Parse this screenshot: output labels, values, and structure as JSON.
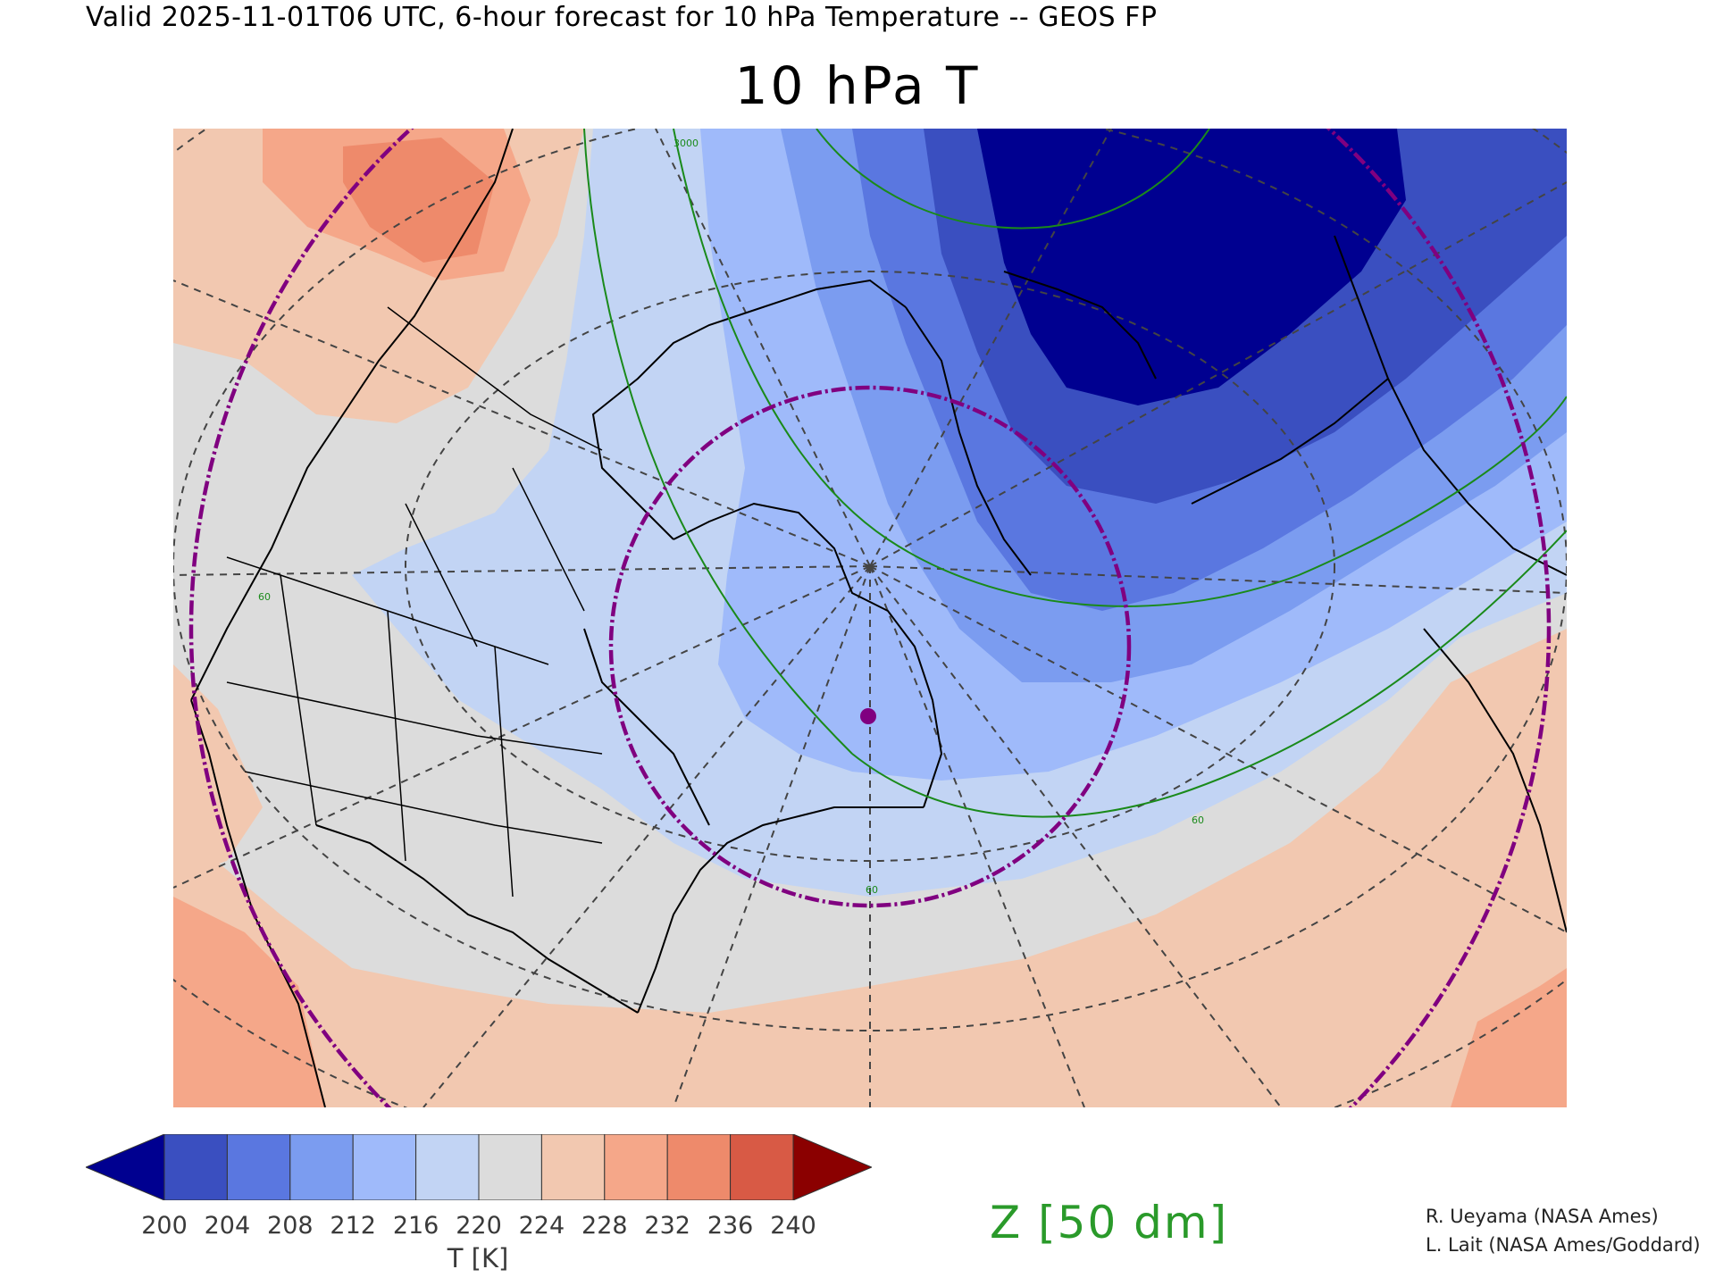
{
  "header": {
    "valid_text": "Valid 2025-11-01T06 UTC, 6-hour forecast for 10 hPa Temperature -- GEOS FP",
    "title": "10 hPa T"
  },
  "map": {
    "projection": "polar stereographic (north)",
    "background_color": "#dcdcdc",
    "coastline_color": "#000000",
    "graticule_color": "#444444",
    "contour_color": "#1a8a1a",
    "vortex_edge_color": "#800080",
    "contour_labels": [
      "3000",
      "60",
      "60",
      "60"
    ],
    "marker": "center-point"
  },
  "colorbar": {
    "ticks": [
      "200",
      "204",
      "208",
      "212",
      "216",
      "220",
      "224",
      "228",
      "232",
      "236",
      "240"
    ],
    "label": "T [K]",
    "under_color": "#000090",
    "over_color": "#8b0000",
    "bin_colors": [
      "#3a4fc0",
      "#5a77e0",
      "#7b9cf0",
      "#9fbafa",
      "#c2d4f4",
      "#dcdcdc",
      "#f2c8b0",
      "#f5a789",
      "#ee8a6b",
      "#d85a45"
    ]
  },
  "contour_legend": {
    "label": "Z [50 dm]",
    "color": "#2a9a2a"
  },
  "credits": {
    "line1": "R. Ueyama (NASA Ames)",
    "line2": "L. Lait (NASA Ames/Goddard)"
  }
}
